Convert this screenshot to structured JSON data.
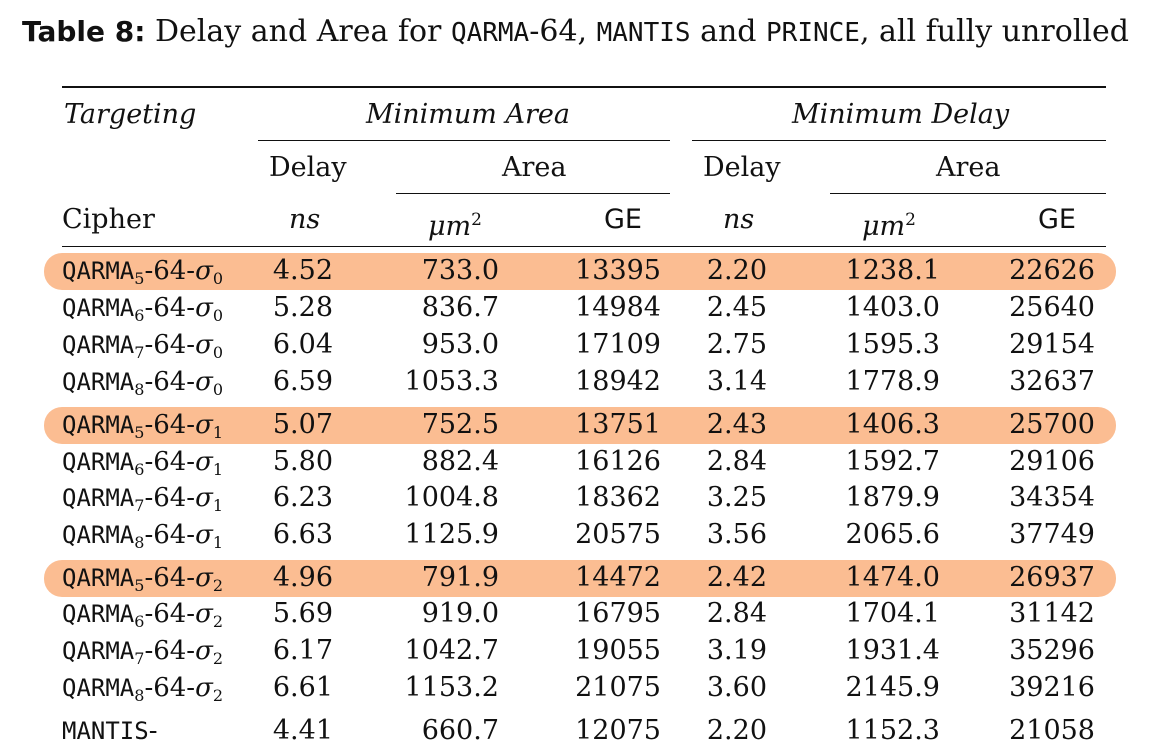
{
  "caption": {
    "label": "Table 8:",
    "text_part1": " Delay and Area for ",
    "cipher1": "QARMA",
    "text_part2": "-64, ",
    "cipher2": "MANTIS",
    "text_part3": " and ",
    "cipher3": "PRINCE",
    "text_part4": ", all fully unrolled"
  },
  "header": {
    "targeting": "Targeting",
    "min_area": "Minimum Area",
    "min_delay": "Minimum Delay",
    "delay": "Delay",
    "area": "Area",
    "cipher": "Cipher",
    "ns": "ns",
    "um_base": "μm",
    "um_exp": "2",
    "ge": "GE"
  },
  "highlight_color": "#fbbd92",
  "rows": [
    {
      "name": "QARMA",
      "r": "5",
      "sep": "-64-",
      "sigma": "σ",
      "si": "0",
      "v": [
        "4.52",
        "733.0",
        "13395",
        "2.20",
        "1238.1",
        "22626"
      ],
      "hl": true
    },
    {
      "name": "QARMA",
      "r": "6",
      "sep": "-64-",
      "sigma": "σ",
      "si": "0",
      "v": [
        "5.28",
        "836.7",
        "14984",
        "2.45",
        "1403.0",
        "25640"
      ],
      "hl": false
    },
    {
      "name": "QARMA",
      "r": "7",
      "sep": "-64-",
      "sigma": "σ",
      "si": "0",
      "v": [
        "6.04",
        "953.0",
        "17109",
        "2.75",
        "1595.3",
        "29154"
      ],
      "hl": false
    },
    {
      "name": "QARMA",
      "r": "8",
      "sep": "-64-",
      "sigma": "σ",
      "si": "0",
      "v": [
        "6.59",
        "1053.3",
        "18942",
        "3.14",
        "1778.9",
        "32637"
      ],
      "hl": false
    },
    {
      "name": "QARMA",
      "r": "5",
      "sep": "-64-",
      "sigma": "σ",
      "si": "1",
      "v": [
        "5.07",
        "752.5",
        "13751",
        "2.43",
        "1406.3",
        "25700"
      ],
      "hl": true
    },
    {
      "name": "QARMA",
      "r": "6",
      "sep": "-64-",
      "sigma": "σ",
      "si": "1",
      "v": [
        "5.80",
        "882.4",
        "16126",
        "2.84",
        "1592.7",
        "29106"
      ],
      "hl": false
    },
    {
      "name": "QARMA",
      "r": "7",
      "sep": "-64-",
      "sigma": "σ",
      "si": "1",
      "v": [
        "6.23",
        "1004.8",
        "18362",
        "3.25",
        "1879.9",
        "34354"
      ],
      "hl": false
    },
    {
      "name": "QARMA",
      "r": "8",
      "sep": "-64-",
      "sigma": "σ",
      "si": "1",
      "v": [
        "6.63",
        "1125.9",
        "20575",
        "3.56",
        "2065.6",
        "37749"
      ],
      "hl": false
    },
    {
      "name": "QARMA",
      "r": "5",
      "sep": "-64-",
      "sigma": "σ",
      "si": "2",
      "v": [
        "4.96",
        "791.9",
        "14472",
        "2.42",
        "1474.0",
        "26937"
      ],
      "hl": true
    },
    {
      "name": "QARMA",
      "r": "6",
      "sep": "-64-",
      "sigma": "σ",
      "si": "2",
      "v": [
        "5.69",
        "919.0",
        "16795",
        "2.84",
        "1704.1",
        "31142"
      ],
      "hl": false
    },
    {
      "name": "QARMA",
      "r": "7",
      "sep": "-64-",
      "sigma": "σ",
      "si": "2",
      "v": [
        "6.17",
        "1042.7",
        "19055",
        "3.19",
        "1931.4",
        "35296"
      ],
      "hl": false
    },
    {
      "name": "QARMA",
      "r": "8",
      "sep": "-64-",
      "sigma": "σ",
      "si": "2",
      "v": [
        "6.61",
        "1153.2",
        "21075",
        "3.60",
        "2145.9",
        "39216"
      ],
      "hl": false
    },
    {
      "name": "MANTIS",
      "r": "",
      "sep": "-",
      "sigma": "",
      "si": "",
      "v": [
        "4.41",
        "660.7",
        "12075",
        "2.20",
        "1152.3",
        "21058"
      ],
      "hl": false
    }
  ]
}
